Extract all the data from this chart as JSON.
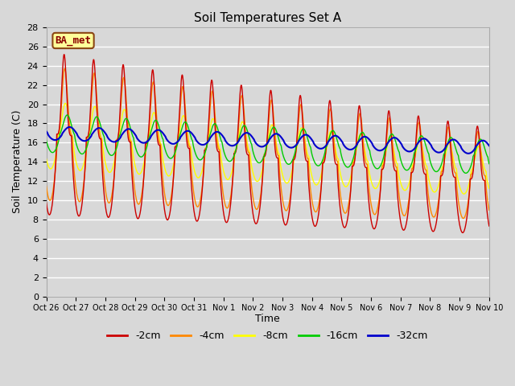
{
  "title": "Soil Temperatures Set A",
  "xlabel": "Time",
  "ylabel": "Soil Temperature (C)",
  "ylim": [
    0,
    28
  ],
  "yticks": [
    0,
    2,
    4,
    6,
    8,
    10,
    12,
    14,
    16,
    18,
    20,
    22,
    24,
    26,
    28
  ],
  "xtick_labels": [
    "Oct 26",
    "Oct 27",
    "Oct 28",
    "Oct 29",
    "Oct 30",
    "Oct 31",
    "Nov 1",
    "Nov 2",
    "Nov 3",
    "Nov 4",
    "Nov 5",
    "Nov 6",
    "Nov 7",
    "Nov 8",
    "Nov 9",
    "Nov 10"
  ],
  "colors": {
    "-2cm": "#cc0000",
    "-4cm": "#ff8800",
    "-8cm": "#ffff00",
    "-16cm": "#00cc00",
    "-32cm": "#0000cc"
  },
  "legend_label": "BA_met",
  "background_color": "#d8d8d8",
  "plot_bg_color": "#d8d8d8",
  "grid_color": "#ffffff",
  "n_days": 15,
  "points_per_day": 144
}
